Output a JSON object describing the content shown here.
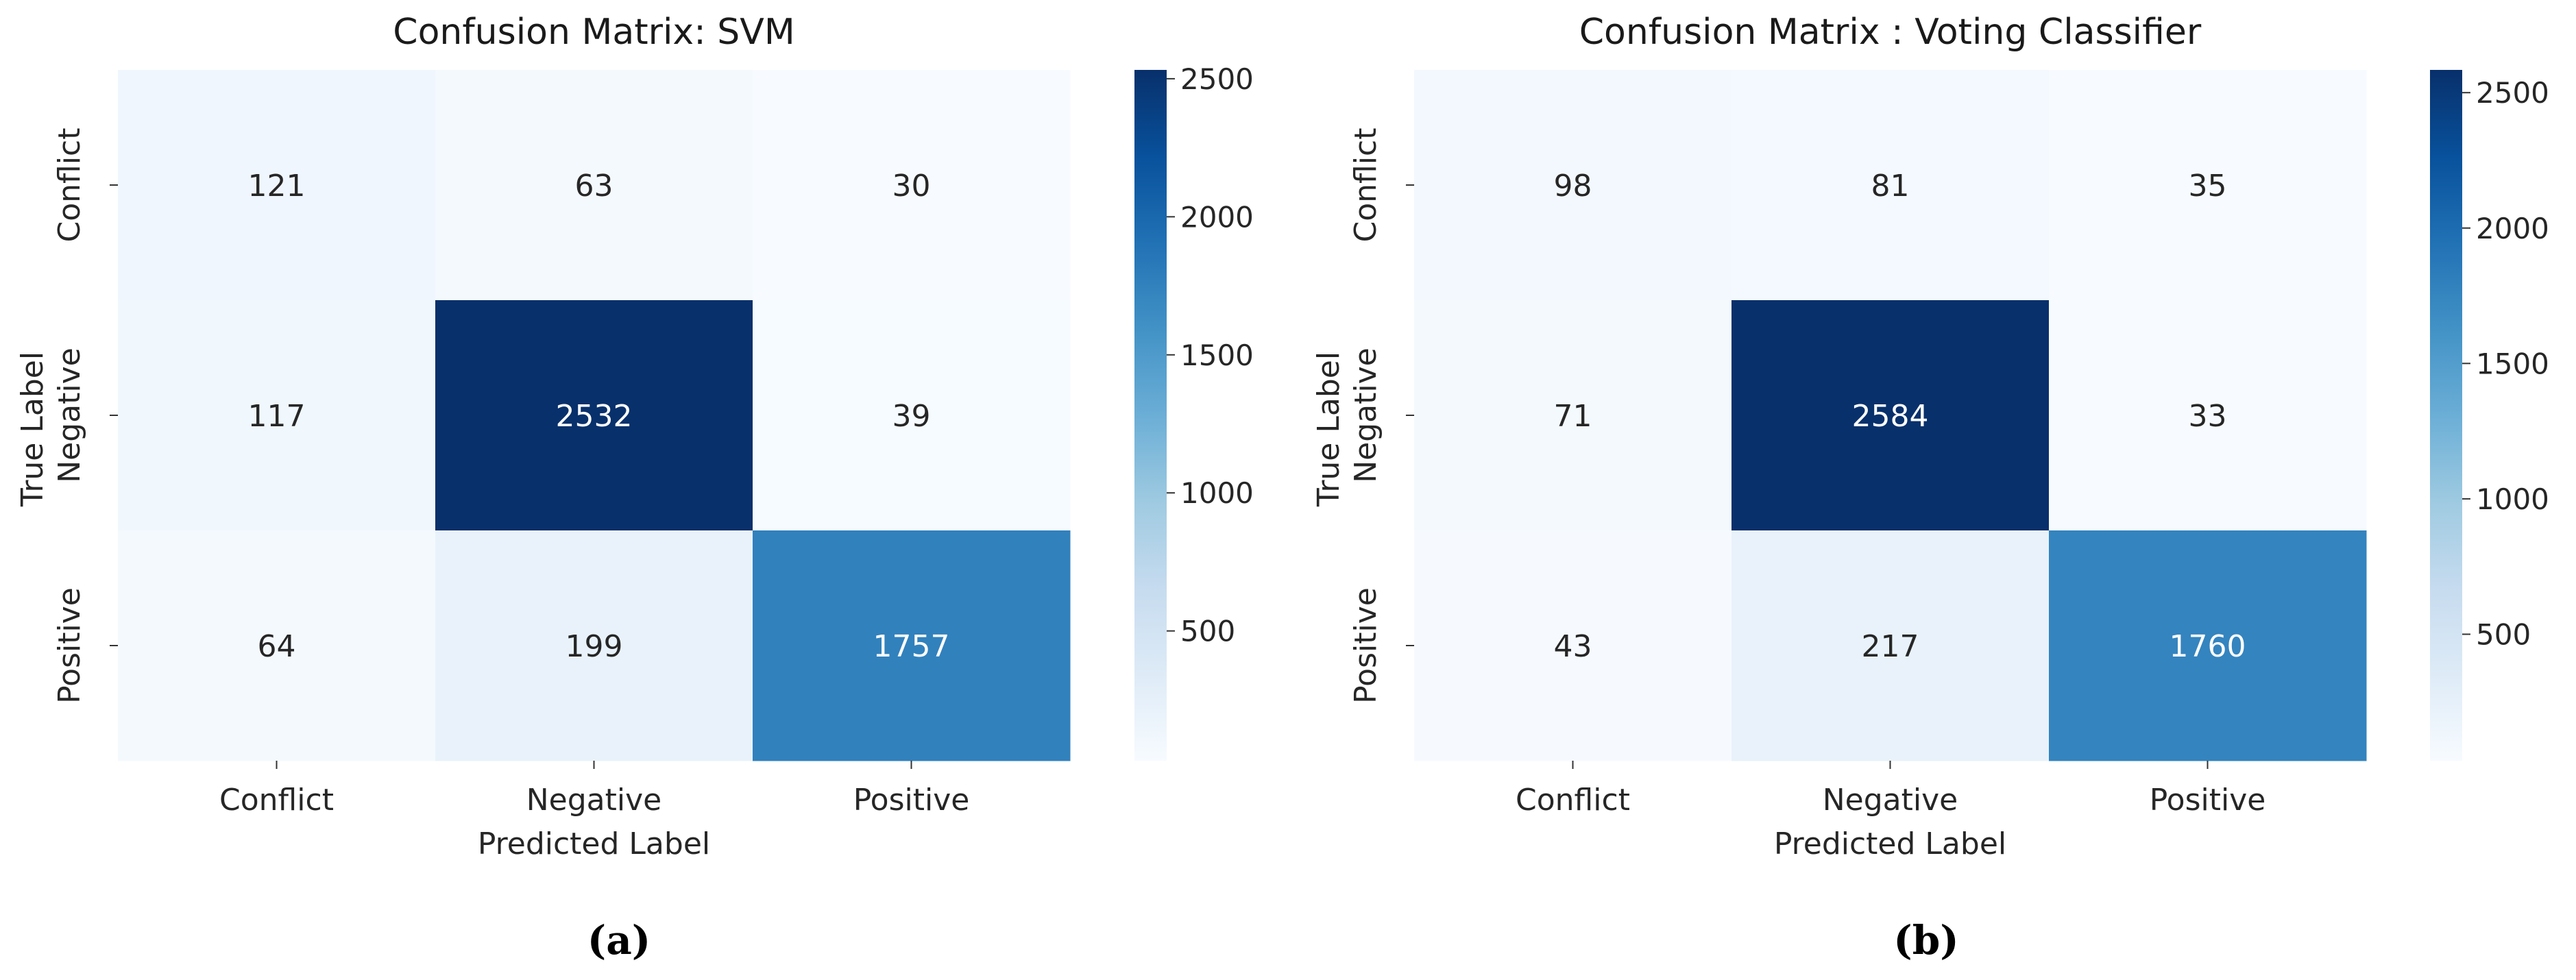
{
  "chart_data": [
    {
      "type": "heatmap",
      "panel_label": "(a)",
      "title": "Confusion Matrix: SVM",
      "xlabel": "Predicted Label",
      "ylabel": "True Label",
      "x_categories": [
        "Conflict",
        "Negative",
        "Positive"
      ],
      "y_categories": [
        "Conflict",
        "Negative",
        "Positive"
      ],
      "values": [
        [
          121,
          63,
          30
        ],
        [
          117,
          2532,
          39
        ],
        [
          64,
          199,
          1757
        ]
      ],
      "colormap": "Blues",
      "colorbar_range": [
        30,
        2532
      ],
      "colorbar_ticks": [
        500,
        1000,
        1500,
        2000,
        2500
      ],
      "colorbar_tick_labels": [
        "500",
        "1000",
        "1500",
        "2000",
        "2500"
      ]
    },
    {
      "type": "heatmap",
      "panel_label": "(b)",
      "title": "Confusion Matrix : Voting Classifier",
      "xlabel": "Predicted Label",
      "ylabel": "True Label",
      "x_categories": [
        "Conflict",
        "Negative",
        "Positive"
      ],
      "y_categories": [
        "Conflict",
        "Negative",
        "Positive"
      ],
      "values": [
        [
          98,
          81,
          35
        ],
        [
          71,
          2584,
          33
        ],
        [
          43,
          217,
          1760
        ]
      ],
      "colormap": "Blues",
      "colorbar_range": [
        33,
        2584
      ],
      "colorbar_ticks": [
        500,
        1000,
        1500,
        2000,
        2500
      ],
      "colorbar_tick_labels": [
        "500",
        "1000",
        "1500",
        "2000",
        "2500"
      ]
    }
  ]
}
